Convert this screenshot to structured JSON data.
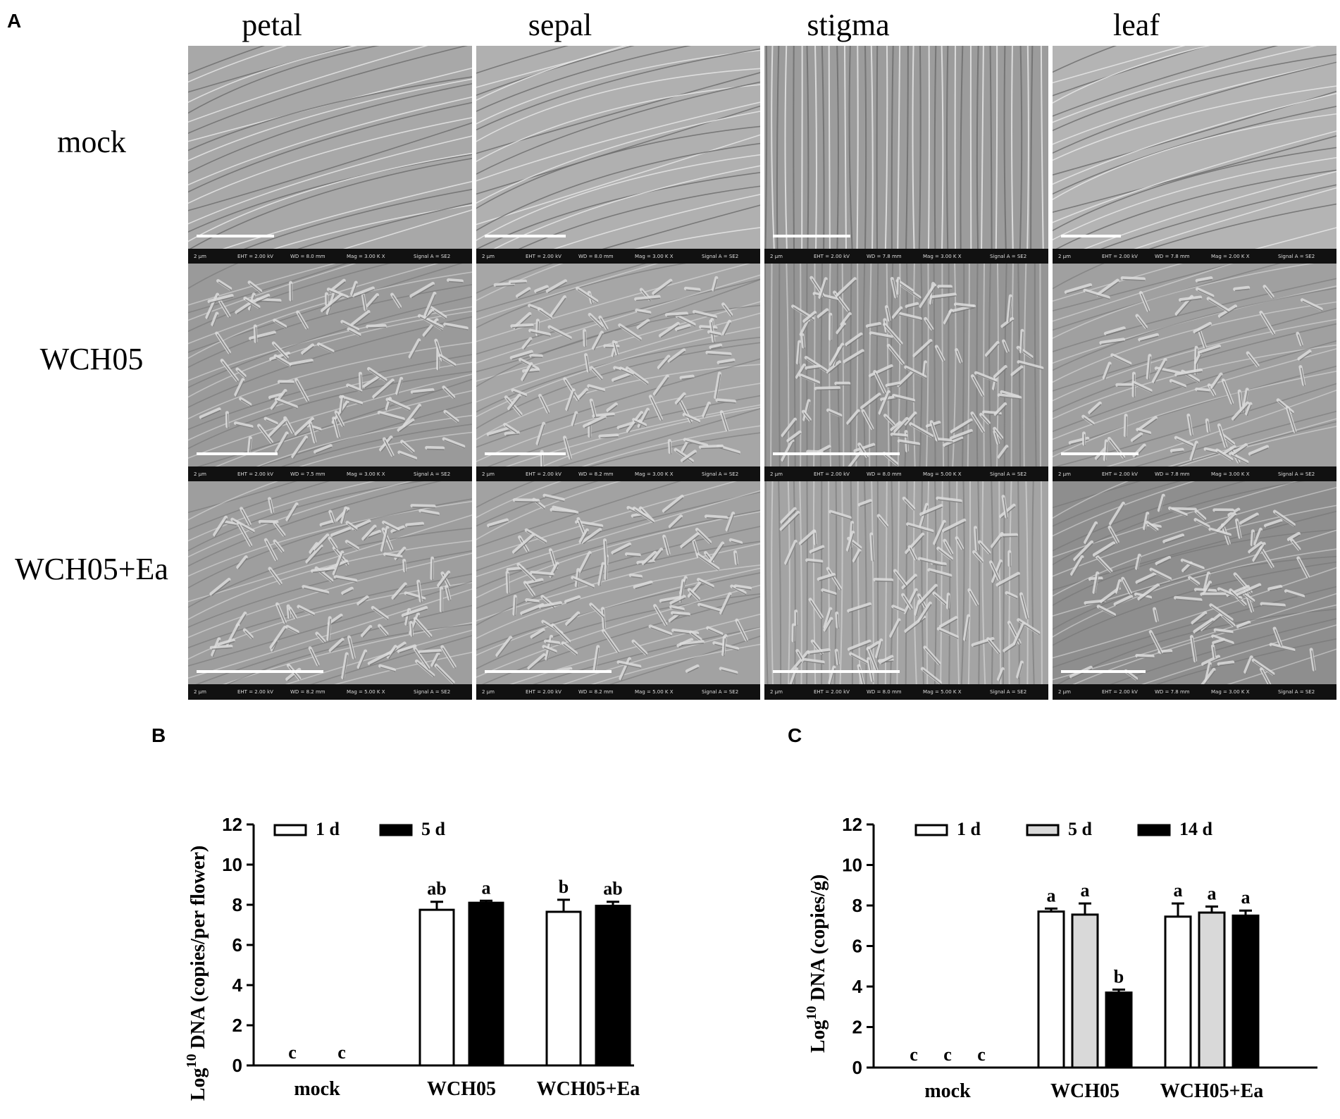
{
  "panel_labels": {
    "a": "A",
    "b": "B",
    "c": "C"
  },
  "columns": [
    "petal",
    "sepal",
    "stigma",
    "leaf"
  ],
  "rows": [
    "mock",
    "WCH05",
    "WCH05+Ea"
  ],
  "sem_footer": {
    "scale": "2 µm",
    "eht": "EHT = 2.00 kV",
    "signal": "Signal A = SE2",
    "wd": [
      [
        "WD = 8.0 mm",
        "WD = 8.0 mm",
        "WD = 7.8 mm",
        "WD = 7.8 mm"
      ],
      [
        "WD = 7.5 mm",
        "WD = 8.2 mm",
        "WD = 8.0 mm",
        "WD = 7.8 mm"
      ],
      [
        "WD = 8.2 mm",
        "WD = 8.2 mm",
        "WD = 8.0 mm",
        "WD = 7.8 mm"
      ]
    ],
    "mag": [
      [
        "Mag = 3.00 K X",
        "Mag = 3.00 K X",
        "Mag = 3.00 K X",
        "Mag = 2.00 K X"
      ],
      [
        "Mag = 3.00 K X",
        "Mag = 3.00 K X",
        "Mag = 5.00 K X",
        "Mag = 3.00 K X"
      ],
      [
        "Mag = 5.00 K X",
        "Mag = 5.00 K X",
        "Mag = 5.00 K X",
        "Mag = 3.00 K X"
      ]
    ]
  },
  "chart_data": [
    {
      "panel": "B",
      "type": "bar",
      "categories": [
        "mock",
        "WCH05",
        "WCH05+Ea"
      ],
      "ylabel_prefix": "Log",
      "ylabel_sup": "10",
      "ylabel_rest": " DNA (copies/per flower)",
      "ylim": [
        0,
        12
      ],
      "yticks": [
        0,
        2,
        4,
        6,
        8,
        10,
        12
      ],
      "legend_position": "top-left",
      "series": [
        {
          "name": "1 d",
          "fill": "#ffffff",
          "values": [
            0,
            7.75,
            7.65
          ],
          "errors": [
            0,
            0.4,
            0.6
          ],
          "letters": [
            "c",
            "ab",
            "b"
          ]
        },
        {
          "name": "5 d",
          "fill": "#000000",
          "values": [
            0,
            8.1,
            7.95
          ],
          "errors": [
            0,
            0.1,
            0.2
          ],
          "letters": [
            "c",
            "a",
            "ab"
          ]
        }
      ]
    },
    {
      "panel": "C",
      "type": "bar",
      "categories": [
        "mock",
        "WCH05",
        "WCH05+Ea"
      ],
      "ylabel_prefix": "Log",
      "ylabel_sup": "10",
      "ylabel_rest": " DNA (copies/g)",
      "ylim": [
        0,
        12
      ],
      "yticks": [
        0,
        2,
        4,
        6,
        8,
        10,
        12
      ],
      "legend_position": "top-left",
      "series": [
        {
          "name": "1 d",
          "fill": "#ffffff",
          "values": [
            0,
            7.7,
            7.45
          ],
          "errors": [
            0,
            0.15,
            0.65
          ],
          "letters": [
            "c",
            "a",
            "a"
          ]
        },
        {
          "name": "5 d",
          "fill": "#d9d9d9",
          "values": [
            0,
            7.55,
            7.65
          ],
          "errors": [
            0,
            0.55,
            0.3
          ],
          "letters": [
            "c",
            "a",
            "a"
          ]
        },
        {
          "name": "14 d",
          "fill": "#000000",
          "values": [
            0,
            3.7,
            7.5
          ],
          "errors": [
            0,
            0.15,
            0.25
          ],
          "letters": [
            "c",
            "b",
            "a"
          ]
        }
      ]
    }
  ]
}
